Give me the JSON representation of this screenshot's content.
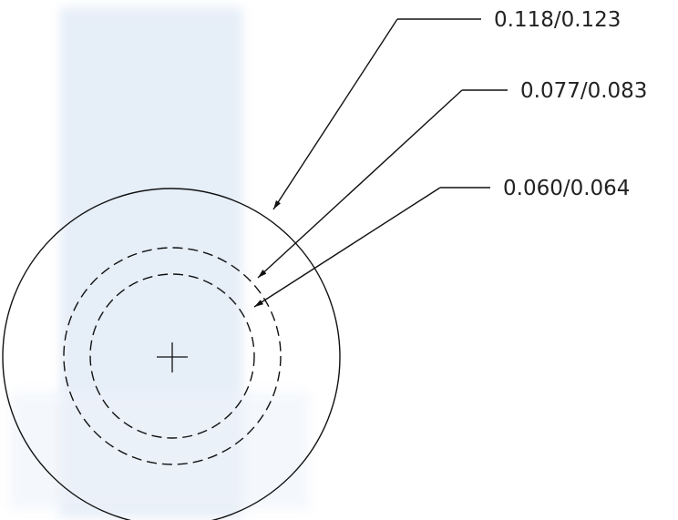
{
  "callouts": {
    "outer": "0.118/0.123",
    "middle": "0.077/0.083",
    "inner": "0.060/0.064"
  },
  "colors": {
    "paper": "#ffffff",
    "shade": "#e6eef8",
    "line": "#111111",
    "text": "#222222"
  }
}
